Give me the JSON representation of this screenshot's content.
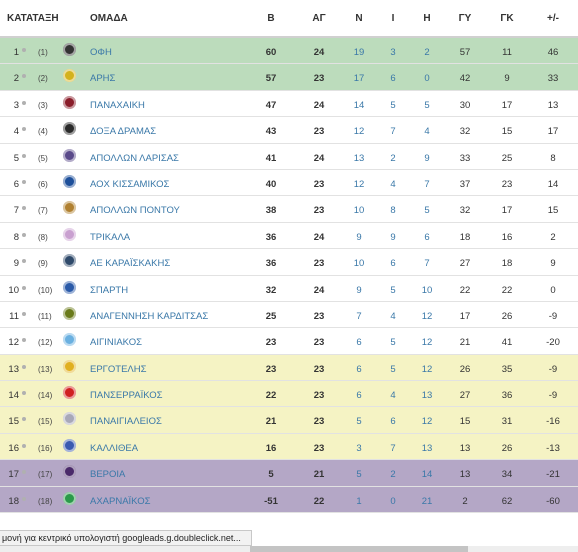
{
  "columns": {
    "rank": "ΚΑΤΑΤΑΞΗ",
    "team": "ΟΜΑΔΑ",
    "points": "Β",
    "played": "ΑΓ",
    "wins": "Ν",
    "draws": "Ι",
    "losses": "Η",
    "goals_for": "ΓΥ",
    "goals_against": "ΓΚ",
    "goal_diff": "+/-"
  },
  "zone_colors": {
    "green": "#bcdcbc",
    "white": "#ffffff",
    "yellow": "#f5f3c4",
    "purple": "#b4a7c6"
  },
  "link_color": "#3a78a8",
  "rows": [
    {
      "pos": "1",
      "prev": "(1)",
      "team": "ΟΦΗ",
      "b": "60",
      "ag": "24",
      "n": "19",
      "i": "3",
      "h": "2",
      "gy": "57",
      "gk": "11",
      "pm": "46",
      "zone": "green",
      "logo": "ofi-crest-icon",
      "logo_color": "#333333"
    },
    {
      "pos": "2",
      "prev": "(2)",
      "team": "ΑΡΗΣ",
      "b": "57",
      "ag": "23",
      "n": "17",
      "i": "6",
      "h": "0",
      "gy": "42",
      "gk": "9",
      "pm": "33",
      "zone": "green",
      "logo": "aris-crest-icon",
      "logo_color": "#d4b21c"
    },
    {
      "pos": "3",
      "prev": "(3)",
      "team": "ΠΑΝΑΧΑΙΚΗ",
      "b": "47",
      "ag": "24",
      "n": "14",
      "i": "5",
      "h": "5",
      "gy": "30",
      "gk": "17",
      "pm": "13",
      "zone": "white",
      "logo": "panachaiki-crest-icon",
      "logo_color": "#8a1d2a"
    },
    {
      "pos": "4",
      "prev": "(4)",
      "team": "ΔΟΞΑ ΔΡΑΜΑΣ",
      "b": "43",
      "ag": "23",
      "n": "12",
      "i": "7",
      "h": "4",
      "gy": "32",
      "gk": "15",
      "pm": "17",
      "zone": "white",
      "logo": "doxa-drama-crest-icon",
      "logo_color": "#2a2a2a"
    },
    {
      "pos": "5",
      "prev": "(5)",
      "team": "ΑΠΟΛΛΩΝ ΛΑΡΙΣΑΣ",
      "b": "41",
      "ag": "24",
      "n": "13",
      "i": "2",
      "h": "9",
      "gy": "33",
      "gk": "25",
      "pm": "8",
      "zone": "white",
      "logo": "apollon-larisas-crest-icon",
      "logo_color": "#5a4a8a"
    },
    {
      "pos": "6",
      "prev": "(6)",
      "team": "ΑΟΧ ΚΙΣΣΑΜΙΚΟΣ",
      "b": "40",
      "ag": "23",
      "n": "12",
      "i": "4",
      "h": "7",
      "gy": "37",
      "gk": "23",
      "pm": "14",
      "zone": "white",
      "logo": "kissamikos-crest-icon",
      "logo_color": "#1d4f9a"
    },
    {
      "pos": "7",
      "prev": "(7)",
      "team": "ΑΠΟΛΛΩΝ ΠΟΝΤΟΥ",
      "b": "38",
      "ag": "23",
      "n": "10",
      "i": "8",
      "h": "5",
      "gy": "32",
      "gk": "17",
      "pm": "15",
      "zone": "white",
      "logo": "apollon-pontou-crest-icon",
      "logo_color": "#b08030"
    },
    {
      "pos": "8",
      "prev": "(8)",
      "team": "ΤΡΙΚΑΛΑ",
      "b": "36",
      "ag": "24",
      "n": "9",
      "i": "9",
      "h": "6",
      "gy": "18",
      "gk": "16",
      "pm": "2",
      "zone": "white",
      "logo": "trikala-crest-icon",
      "logo_color": "#c9a0d0"
    },
    {
      "pos": "9",
      "prev": "(9)",
      "team": "ΑΕ ΚΑΡΑΪΣΚΑΚΗΣ",
      "b": "36",
      "ag": "23",
      "n": "10",
      "i": "6",
      "h": "7",
      "gy": "27",
      "gk": "18",
      "pm": "9",
      "zone": "white",
      "logo": "karaiskakis-crest-icon",
      "logo_color": "#2f4a6a"
    },
    {
      "pos": "10",
      "prev": "(10)",
      "team": "ΣΠΑΡΤΗ",
      "b": "32",
      "ag": "24",
      "n": "9",
      "i": "5",
      "h": "10",
      "gy": "22",
      "gk": "22",
      "pm": "0",
      "zone": "white",
      "logo": "sparti-crest-icon",
      "logo_color": "#2a5aa8"
    },
    {
      "pos": "11",
      "prev": "(11)",
      "team": "ΑΝΑΓΕΝΝΗΣΗ ΚΑΡΔΙΤΣΑΣ",
      "b": "25",
      "ag": "23",
      "n": "7",
      "i": "4",
      "h": "12",
      "gy": "17",
      "gk": "26",
      "pm": "-9",
      "zone": "white",
      "logo": "karditsa-crest-icon",
      "logo_color": "#6a7a1a"
    },
    {
      "pos": "12",
      "prev": "(12)",
      "team": "ΑΙΓΙΝΙΑΚΟΣ",
      "b": "23",
      "ag": "23",
      "n": "6",
      "i": "5",
      "h": "12",
      "gy": "21",
      "gk": "41",
      "pm": "-20",
      "zone": "white",
      "logo": "aiginiakos-crest-icon",
      "logo_color": "#6ab0e0"
    },
    {
      "pos": "13",
      "prev": "(13)",
      "team": "ΕΡΓΟΤΕΛΗΣ",
      "b": "23",
      "ag": "23",
      "n": "6",
      "i": "5",
      "h": "12",
      "gy": "26",
      "gk": "35",
      "pm": "-9",
      "zone": "yellow",
      "logo": "ergotelis-crest-icon",
      "logo_color": "#e0b020"
    },
    {
      "pos": "14",
      "prev": "(14)",
      "team": "ΠΑΝΣΕΡΡΑΪΚΟΣ",
      "b": "22",
      "ag": "23",
      "n": "6",
      "i": "4",
      "h": "13",
      "gy": "27",
      "gk": "36",
      "pm": "-9",
      "zone": "yellow",
      "logo": "panserraikos-crest-icon",
      "logo_color": "#d02020"
    },
    {
      "pos": "15",
      "prev": "(15)",
      "team": "ΠΑΝΑΙΓΙΑΛΕΙΟΣ",
      "b": "21",
      "ag": "23",
      "n": "5",
      "i": "6",
      "h": "12",
      "gy": "15",
      "gk": "31",
      "pm": "-16",
      "zone": "yellow",
      "logo": "panaigialeios-crest-icon",
      "logo_color": "#a8a8b8"
    },
    {
      "pos": "16",
      "prev": "(16)",
      "team": "ΚΑΛΛΙΘΕΑ",
      "b": "16",
      "ag": "23",
      "n": "3",
      "i": "7",
      "h": "13",
      "gy": "13",
      "gk": "26",
      "pm": "-13",
      "zone": "yellow",
      "logo": "kallithea-crest-icon",
      "logo_color": "#3a5ab0"
    },
    {
      "pos": "17",
      "prev": "(17)",
      "team": "ΒΕΡΟΙΑ",
      "b": "5",
      "ag": "21",
      "n": "5",
      "i": "2",
      "h": "14",
      "gy": "13",
      "gk": "34",
      "pm": "-21",
      "zone": "purple",
      "logo": "veria-crest-icon",
      "logo_color": "#4a2a6a"
    },
    {
      "pos": "18",
      "prev": "(18)",
      "team": "ΑΧΑΡΝΑΪΚΟΣ",
      "b": "-51",
      "ag": "22",
      "n": "1",
      "i": "0",
      "h": "21",
      "gy": "2",
      "gk": "62",
      "pm": "-60",
      "zone": "purple",
      "logo": "acharnaikos-crest-icon",
      "logo_color": "#2a9a4a"
    }
  ],
  "status_bar": {
    "text": "μονή για κεντρικό υπολογιστή googleads.g.doubleclick.net..."
  }
}
